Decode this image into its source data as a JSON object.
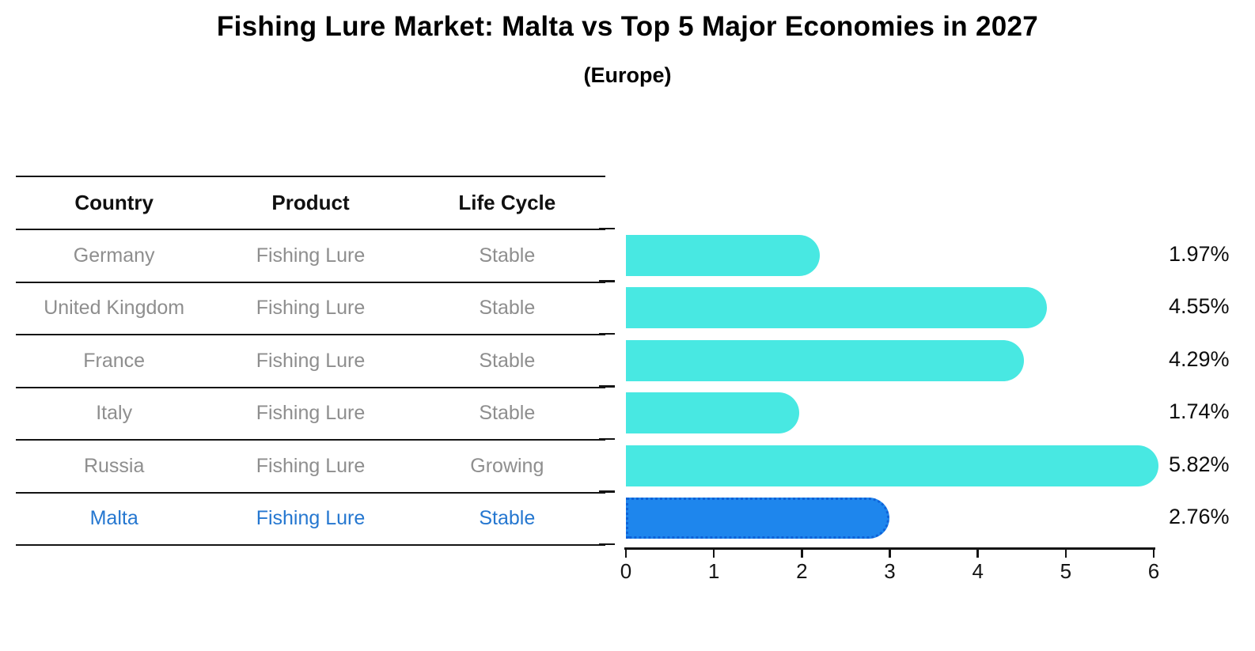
{
  "title": "Fishing Lure Market: Malta vs Top 5 Major Economies in 2027",
  "subtitle": "(Europe)",
  "table": {
    "headers": [
      "Country",
      "Product",
      "Life Cycle"
    ],
    "rows": [
      {
        "country": "Germany",
        "product": "Fishing Lure",
        "life_cycle": "Stable",
        "highlight": false
      },
      {
        "country": "United Kingdom",
        "product": "Fishing Lure",
        "life_cycle": "Stable",
        "highlight": false
      },
      {
        "country": "France",
        "product": "Fishing Lure",
        "life_cycle": "Stable",
        "highlight": false
      },
      {
        "country": "Italy",
        "product": "Fishing Lure",
        "life_cycle": "Stable",
        "highlight": false
      },
      {
        "country": "Russia",
        "product": "Fishing Lure",
        "life_cycle": "Growing",
        "highlight": false
      },
      {
        "country": "Malta",
        "product": "Fishing Lure",
        "life_cycle": "Stable",
        "highlight": true
      }
    ]
  },
  "chart_data": {
    "type": "bar",
    "orientation": "horizontal",
    "categories": [
      "Germany",
      "United Kingdom",
      "France",
      "Italy",
      "Russia",
      "Malta"
    ],
    "values": [
      1.97,
      4.55,
      4.29,
      1.74,
      5.82,
      2.76
    ],
    "value_labels": [
      "1.97%",
      "4.55%",
      "4.29%",
      "1.74%",
      "5.82%",
      "2.76%"
    ],
    "xlim": [
      0,
      6
    ],
    "x_tick_labels": [
      "0",
      "1",
      "2",
      "3",
      "4",
      "5",
      "6"
    ],
    "grid": false,
    "legend": "none",
    "bar_color": "#48e8e2",
    "highlight_index": 5,
    "highlight_color": "#1e86ed",
    "highlight_border_color": "#0f62d8",
    "highlight_border_style": "dotted"
  }
}
